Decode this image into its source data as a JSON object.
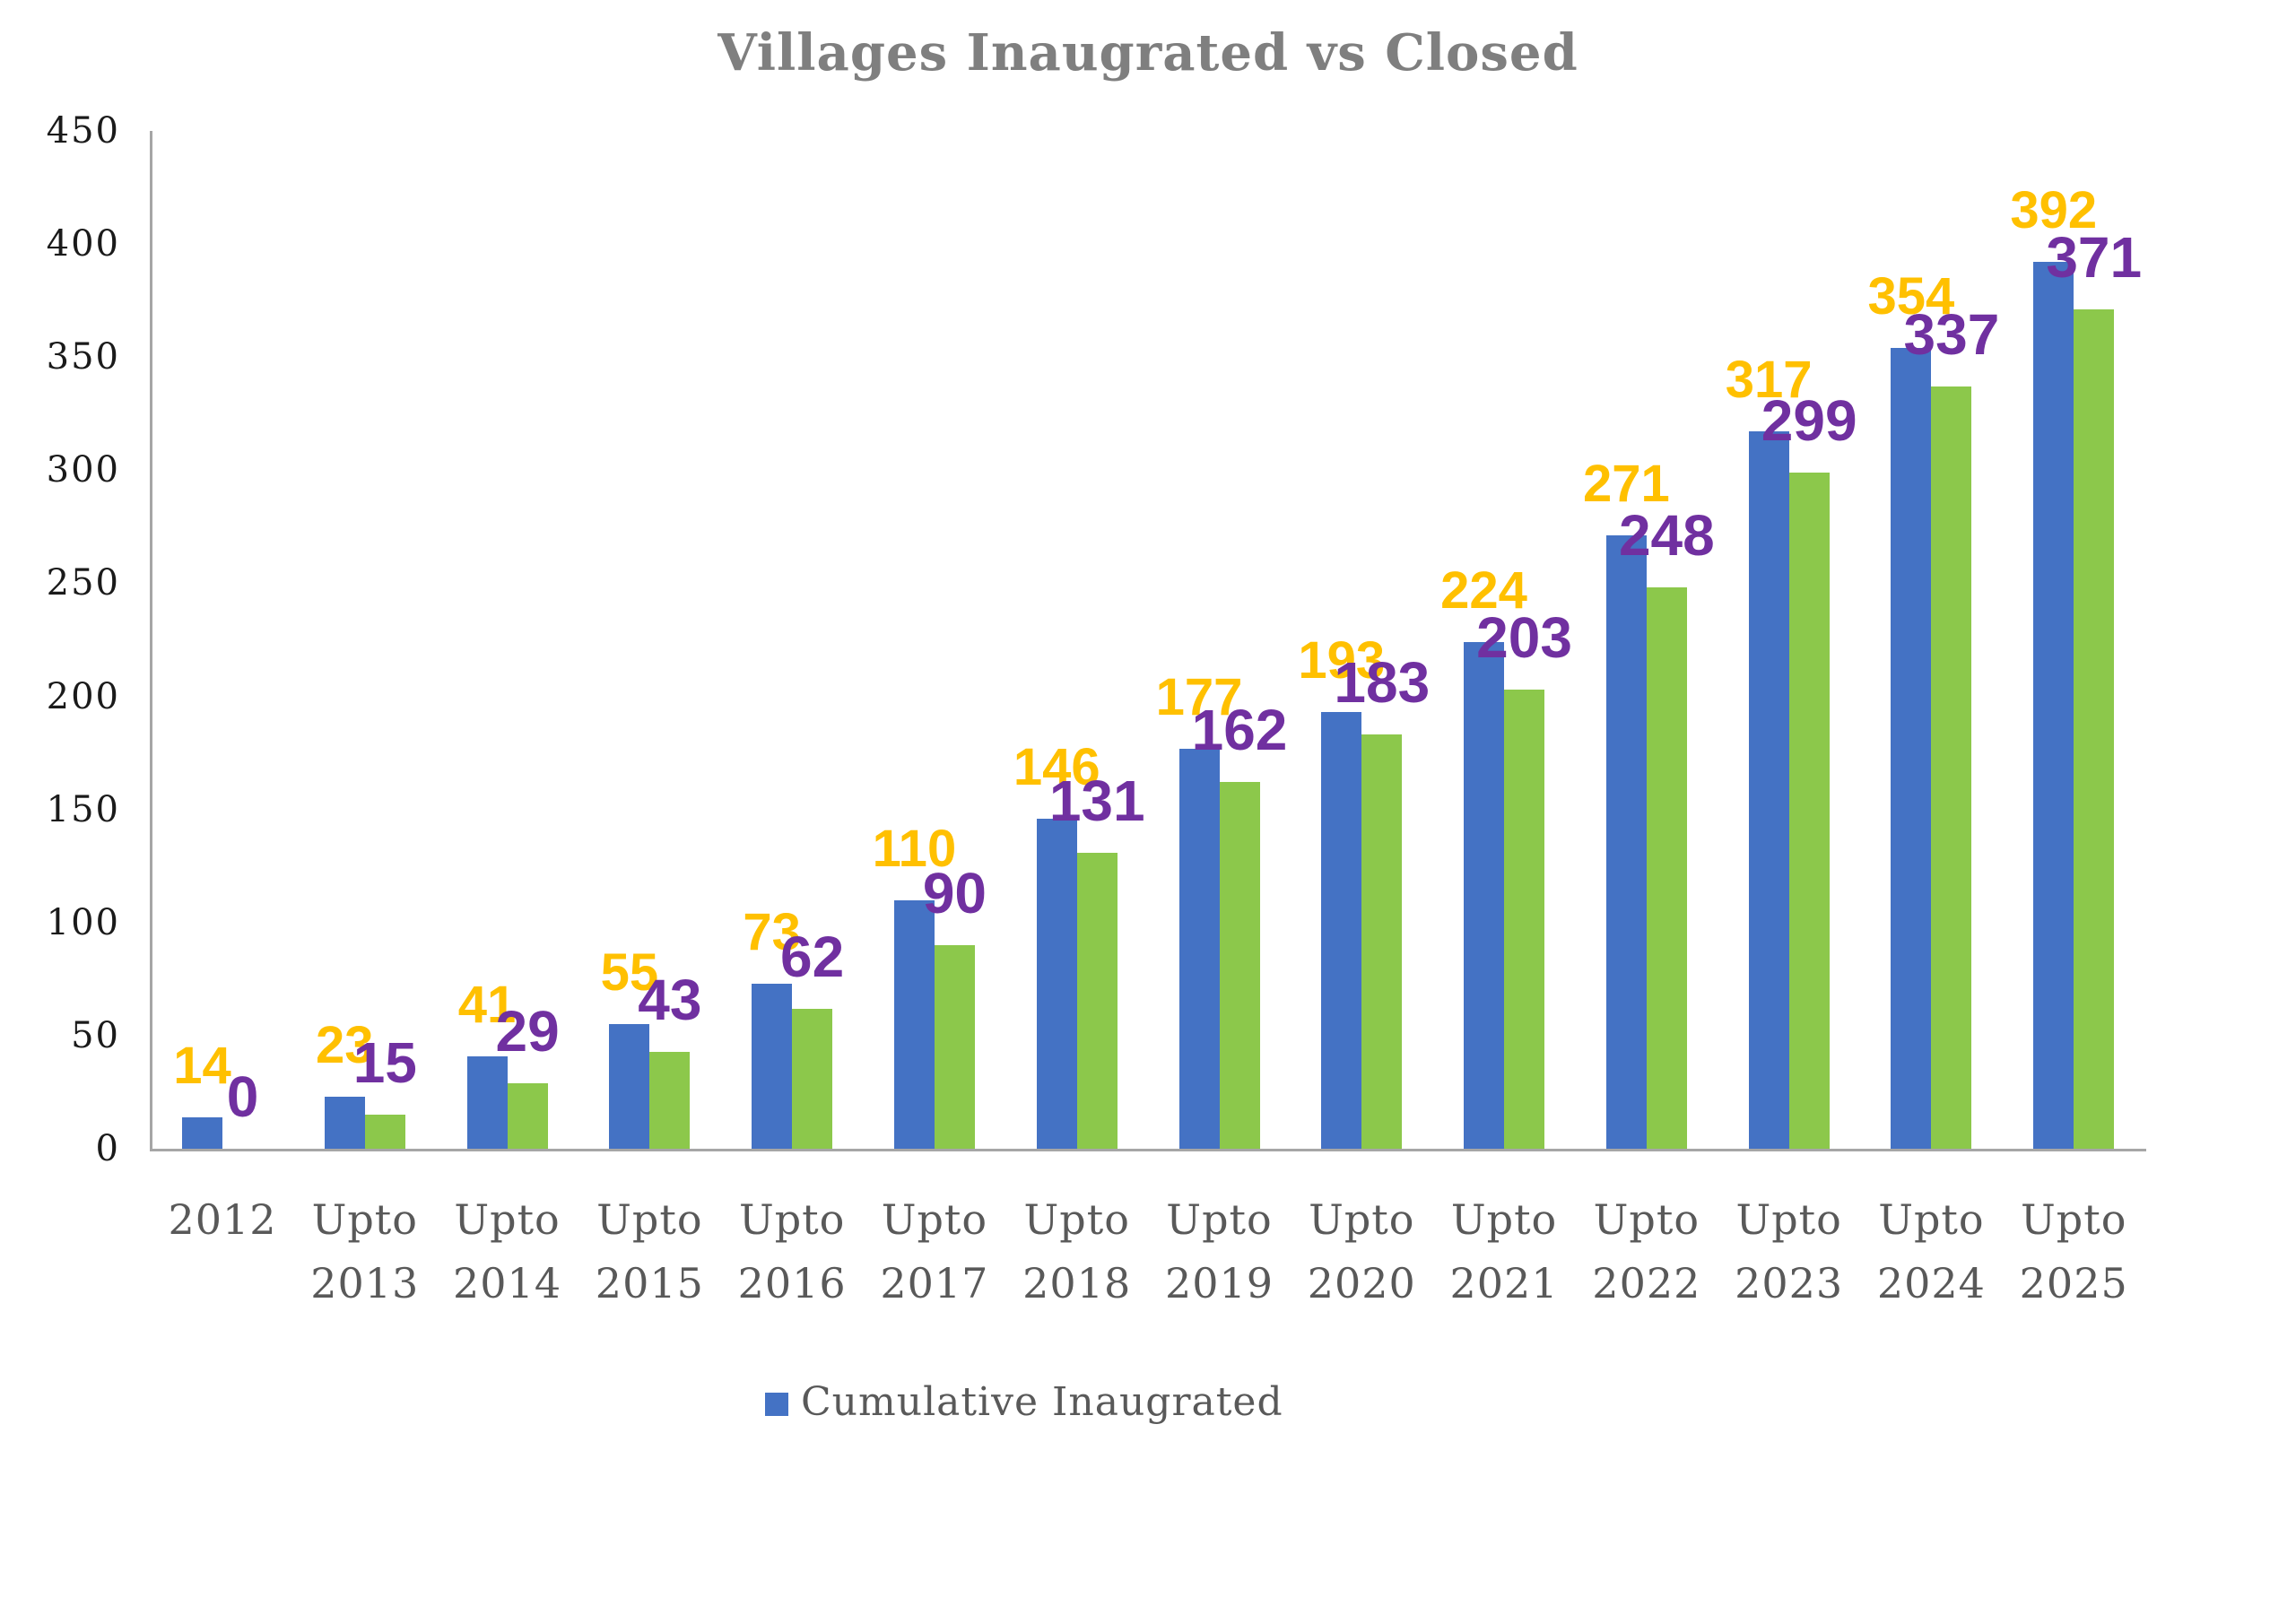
{
  "title": "Villages Inaugrated vs Closed",
  "legend": {
    "items": [
      {
        "label": "Cumulative Inaugrated",
        "swatch_color": "#4472C4"
      }
    ]
  },
  "colors": {
    "bar_blue": "#4472C4",
    "bar_green": "#8CC84B",
    "label_gold": "#FFC000",
    "label_purple": "#7030A0",
    "axis_line": "#A6A6A6",
    "title_text": "#7F7F7F",
    "x_label_text": "#595959",
    "y_tick_text": "#1A1A1A"
  },
  "chart_data": {
    "type": "bar",
    "title": "Villages Inaugrated vs Closed",
    "categories": [
      "2012",
      "Upto 2013",
      "Upto 2014",
      "Upto 2015",
      "Upto 2016",
      "Upto 2017",
      "Upto 2018",
      "Upto 2019",
      "Upto 2020",
      "Upto 2021",
      "Upto 2022",
      "Upto 2023",
      "Upto 2024",
      "Upto 2025"
    ],
    "series": [
      {
        "name": "Cumulative Inaugrated",
        "color": "#4472C4",
        "data_label_color": "#FFC000",
        "values": [
          14,
          23,
          41,
          55,
          73,
          110,
          146,
          177,
          193,
          224,
          271,
          317,
          354,
          392
        ]
      },
      {
        "name": "",
        "color": "#8CC84B",
        "data_label_color": "#7030A0",
        "values": [
          0,
          15,
          29,
          43,
          62,
          90,
          131,
          162,
          183,
          203,
          248,
          299,
          337,
          371
        ]
      }
    ],
    "xlabel": "",
    "ylabel": "",
    "ylim": [
      0,
      450
    ],
    "y_ticks": [
      0,
      50,
      100,
      150,
      200,
      250,
      300,
      350,
      400,
      450
    ],
    "grid": false,
    "legend_position": "bottom",
    "data_labels_visible": true
  }
}
